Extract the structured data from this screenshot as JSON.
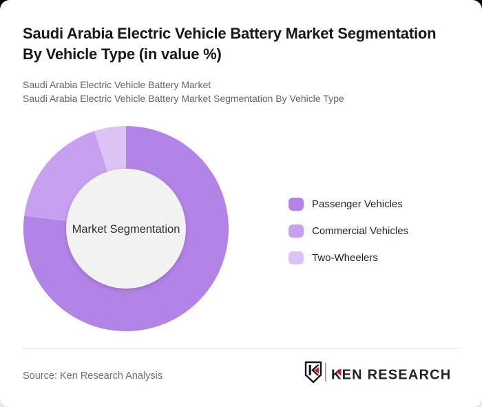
{
  "page": {
    "card_bg": "#ffffff",
    "backdrop_top": "#000000",
    "backdrop_bottom": "#e9e9e9"
  },
  "header": {
    "title": "Saudi Arabia Electric Vehicle Battery Market Segmentation By Vehicle Type (in value %)",
    "subtitle_line1": "Saudi Arabia Electric Vehicle Battery Market",
    "subtitle_line2": "Saudi Arabia Electric Vehicle Battery Market Segmentation By Vehicle Type"
  },
  "chart_data": {
    "type": "pie",
    "variant": "donut",
    "title": "Saudi Arabia Electric Vehicle Battery Market Segmentation By Vehicle Type (in value %)",
    "unit": "value %",
    "categories": [
      "Passenger Vehicles",
      "Commercial Vehicles",
      "Two-Wheelers"
    ],
    "values": [
      77,
      18,
      5
    ],
    "values_are_estimated": true,
    "colors": [
      "#b384e8",
      "#c8a0f0",
      "#dcc3f5"
    ],
    "center_label": "Market Segmentation",
    "center_bg": "#f2f2f2",
    "start_angle_deg": 0,
    "inner_radius_ratio": 0.58,
    "legend_position": "right"
  },
  "footer": {
    "source": "Source: Ken Research Analysis",
    "brand_name": "KEN RESEARCH",
    "brand_red": "#c1272d",
    "brand_dark": "#202329"
  }
}
